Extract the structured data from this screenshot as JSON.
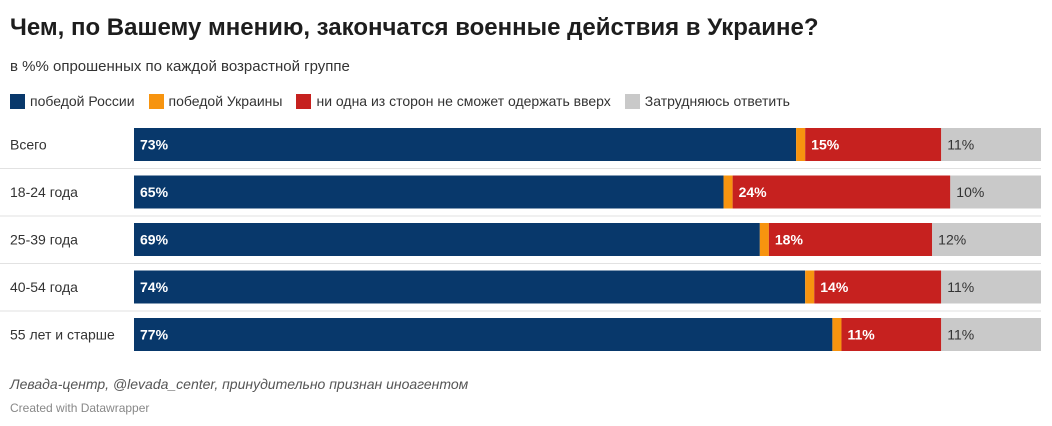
{
  "title": "Чем, по Вашему мнению, закончатся военные действия в Украине?",
  "subtitle": "в %% опрошенных по каждой возрастной группе",
  "legend": [
    {
      "label": "победой России",
      "color": "#08386b"
    },
    {
      "label": "победой Украины",
      "color": "#f7940f"
    },
    {
      "label": "ни одна из сторон не сможет одержать вверх",
      "color": "#c6211f"
    },
    {
      "label": "Затрудняюсь ответить",
      "color": "#c9c9c9"
    }
  ],
  "chart_data": {
    "type": "bar",
    "stacked": true,
    "orientation": "horizontal",
    "categories": [
      "Всего",
      "18-24 года",
      "25-39 года",
      "40-54 года",
      "55 лет и старше"
    ],
    "series": [
      {
        "name": "победой России",
        "color": "#08386b",
        "values": [
          73,
          65,
          69,
          74,
          77
        ],
        "labels": [
          "73%",
          "65%",
          "69%",
          "74%",
          "77%"
        ]
      },
      {
        "name": "победой Украины",
        "color": "#f7940f",
        "values": [
          1,
          1,
          1,
          1,
          1
        ],
        "labels": [
          "",
          "",
          "",
          "",
          ""
        ]
      },
      {
        "name": "ни одна из сторон не сможет одержать вверх",
        "color": "#c6211f",
        "values": [
          15,
          24,
          18,
          14,
          11
        ],
        "labels": [
          "15%",
          "24%",
          "18%",
          "14%",
          "11%"
        ]
      },
      {
        "name": "Затрудняюсь ответить",
        "color": "#c9c9c9",
        "values": [
          11,
          10,
          12,
          11,
          11
        ],
        "labels": [
          "11%",
          "10%",
          "12%",
          "11%",
          "11%"
        ]
      }
    ],
    "xlim": [
      0,
      100
    ]
  },
  "footer": {
    "source": "Левада-центр, @levada_center, принудительно признан иноагентом",
    "credit": "Created with Datawrapper"
  }
}
